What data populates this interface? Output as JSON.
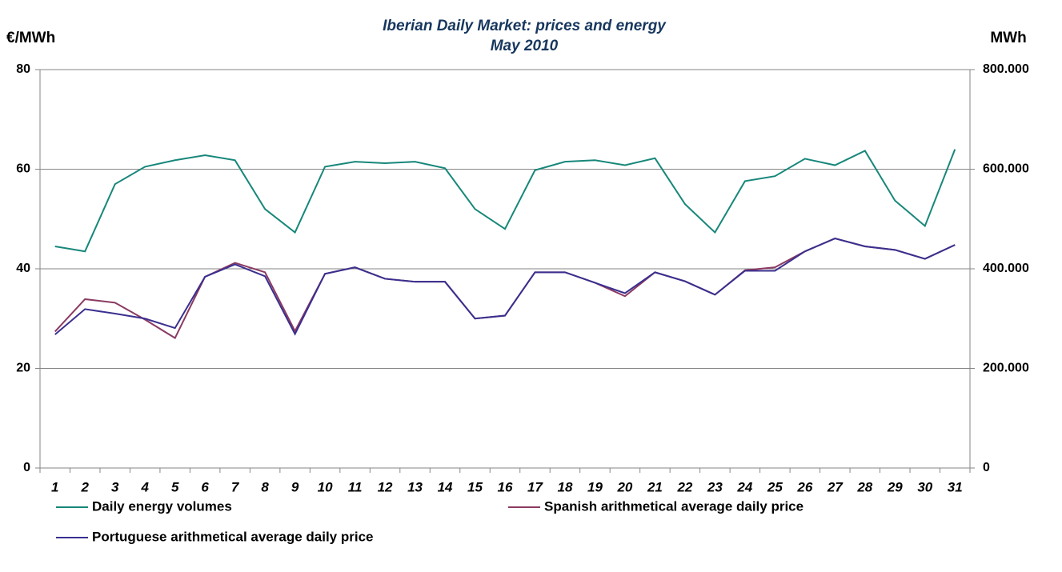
{
  "chart_data": {
    "type": "line",
    "title": "Iberian Daily Market: prices and energy",
    "subtitle": "May 2010",
    "y_label": "€/MWh",
    "y2_label": "MWh",
    "categories": [
      "1",
      "2",
      "3",
      "4",
      "5",
      "6",
      "7",
      "8",
      "9",
      "10",
      "11",
      "12",
      "13",
      "14",
      "15",
      "16",
      "17",
      "18",
      "19",
      "20",
      "21",
      "22",
      "23",
      "24",
      "25",
      "26",
      "27",
      "28",
      "29",
      "30",
      "31"
    ],
    "series": [
      {
        "name": "Daily energy volumes",
        "color": "#17877a",
        "axis": "y2",
        "values": [
          445000,
          435000,
          570000,
          605000,
          618000,
          628000,
          618000,
          520000,
          473000,
          605000,
          615000,
          612000,
          615000,
          602000,
          520000,
          480000,
          598000,
          615000,
          618000,
          608000,
          622000,
          530000,
          473000,
          576000,
          586000,
          621000,
          608000,
          637000,
          537000,
          486000,
          640000
        ]
      },
      {
        "name": "Spanish arithmetical average daily price",
        "color": "#8b3a62",
        "values": [
          27.4,
          33.9,
          33.2,
          29.8,
          26.1,
          38.4,
          41.2,
          39.3,
          27.5,
          39.0,
          40.3,
          38.0,
          37.4,
          37.4,
          30.0,
          30.6,
          39.3,
          39.3,
          37.2,
          34.5,
          39.3,
          37.5,
          34.8,
          39.7,
          40.3,
          43.5,
          46.1,
          44.5,
          43.8,
          42.0,
          44.8
        ]
      },
      {
        "name": "Portuguese arithmetical average daily price",
        "color": "#3a2f8f",
        "values": [
          26.8,
          31.9,
          31.0,
          30.0,
          28.1,
          38.4,
          40.9,
          38.5,
          26.9,
          39.0,
          40.3,
          38.0,
          37.4,
          37.4,
          30.0,
          30.6,
          39.3,
          39.3,
          37.2,
          35.1,
          39.3,
          37.5,
          34.8,
          39.6,
          39.6,
          43.5,
          46.1,
          44.5,
          43.8,
          42.0,
          44.8
        ]
      }
    ],
    "ylim": [
      0,
      80
    ],
    "yticks": [
      0,
      20,
      40,
      60,
      80
    ],
    "y2lim": [
      0,
      800000
    ],
    "y2ticks": [
      0,
      {
        "value": 200000,
        "label": "200.000"
      },
      {
        "value": 400000,
        "label": "400.000"
      },
      {
        "value": 600000,
        "label": "600.000"
      },
      {
        "value": 800000,
        "label": "800.000"
      }
    ],
    "grid": true
  }
}
